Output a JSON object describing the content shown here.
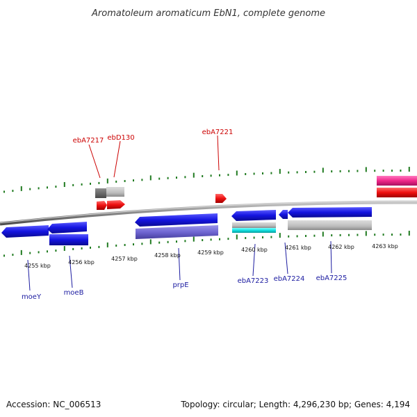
{
  "title": "Aromatoleum aromaticum EbN1, complete genome",
  "footer": {
    "accession": "Accession: NC_006513",
    "topology": "Topology: circular; Length: 4,296,230 bp; Genes: 4,194"
  },
  "colors": {
    "backbone": "#8a8a8a",
    "tick": "#1f7a1f",
    "label_top": "#cc0000",
    "label_bottom": "#1a1aa0"
  },
  "scale_labels": [
    "4255 kbp",
    "4256 kbp",
    "4257 kbp",
    "4258 kbp",
    "4259 kbp",
    "4260 kbp",
    "4261 kbp",
    "4262 kbp",
    "4263 kbp"
  ],
  "gene_labels_top": [
    "ebA7217",
    "ebD130",
    "ebA7221"
  ],
  "gene_labels_bottom": [
    "moeY",
    "moeB",
    "prpE",
    "ebA7223",
    "ebA7224",
    "ebA7225"
  ]
}
